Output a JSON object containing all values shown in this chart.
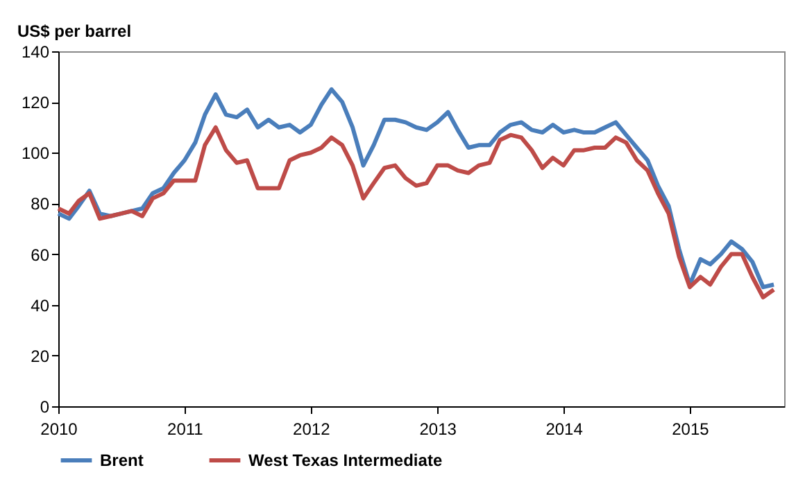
{
  "chart_data": {
    "type": "line",
    "ylabel": "US$ per barrel",
    "x": [
      "2010-01",
      "2010-02",
      "2010-03",
      "2010-04",
      "2010-05",
      "2010-06",
      "2010-07",
      "2010-08",
      "2010-09",
      "2010-10",
      "2010-11",
      "2010-12",
      "2011-01",
      "2011-02",
      "2011-03",
      "2011-04",
      "2011-05",
      "2011-06",
      "2011-07",
      "2011-08",
      "2011-09",
      "2011-10",
      "2011-11",
      "2011-12",
      "2012-01",
      "2012-02",
      "2012-03",
      "2012-04",
      "2012-05",
      "2012-06",
      "2012-07",
      "2012-08",
      "2012-09",
      "2012-10",
      "2012-11",
      "2012-12",
      "2013-01",
      "2013-02",
      "2013-03",
      "2013-04",
      "2013-05",
      "2013-06",
      "2013-07",
      "2013-08",
      "2013-09",
      "2013-10",
      "2013-11",
      "2013-12",
      "2014-01",
      "2014-02",
      "2014-03",
      "2014-04",
      "2014-05",
      "2014-06",
      "2014-07",
      "2014-08",
      "2014-09",
      "2014-10",
      "2014-11",
      "2014-12",
      "2015-01",
      "2015-02",
      "2015-03",
      "2015-04",
      "2015-05",
      "2015-06",
      "2015-07",
      "2015-08",
      "2015-09"
    ],
    "series": [
      {
        "name": "Brent",
        "color": "#4a7ebb",
        "values": [
          76,
          74,
          79,
          85,
          76,
          75,
          76,
          77,
          78,
          84,
          86,
          92,
          97,
          104,
          115,
          123,
          115,
          114,
          117,
          110,
          113,
          110,
          111,
          108,
          111,
          119,
          125,
          120,
          110,
          95,
          103,
          113,
          113,
          112,
          110,
          109,
          112,
          116,
          109,
          102,
          103,
          103,
          108,
          111,
          112,
          109,
          108,
          111,
          108,
          109,
          108,
          108,
          110,
          112,
          107,
          102,
          97,
          87,
          79,
          62,
          48,
          58,
          56,
          60,
          65,
          62,
          57,
          47,
          48
        ]
      },
      {
        "name": "West Texas Intermediate",
        "color": "#be4b48",
        "values": [
          78,
          76,
          81,
          84,
          74,
          75,
          76,
          77,
          75,
          82,
          84,
          89,
          89,
          89,
          103,
          110,
          101,
          96,
          97,
          86,
          86,
          86,
          97,
          99,
          100,
          102,
          106,
          103,
          95,
          82,
          88,
          94,
          95,
          90,
          87,
          88,
          95,
          95,
          93,
          92,
          95,
          96,
          105,
          107,
          106,
          101,
          94,
          98,
          95,
          101,
          101,
          102,
          102,
          106,
          104,
          97,
          93,
          84,
          76,
          59,
          47,
          51,
          48,
          55,
          60,
          60,
          51,
          43,
          46
        ]
      }
    ],
    "xlim": [
      "2010-01",
      "2015-10"
    ],
    "xticks": [
      {
        "value": "2010-01",
        "label": "2010"
      },
      {
        "value": "2011-01",
        "label": "2011"
      },
      {
        "value": "2012-01",
        "label": "2012"
      },
      {
        "value": "2013-01",
        "label": "2013"
      },
      {
        "value": "2014-01",
        "label": "2014"
      },
      {
        "value": "2015-01",
        "label": "2015"
      }
    ],
    "ylim": [
      0,
      140
    ],
    "yticks": [
      0,
      20,
      40,
      60,
      80,
      100,
      120,
      140
    ],
    "legend": "bottom",
    "line_style": "solid"
  }
}
